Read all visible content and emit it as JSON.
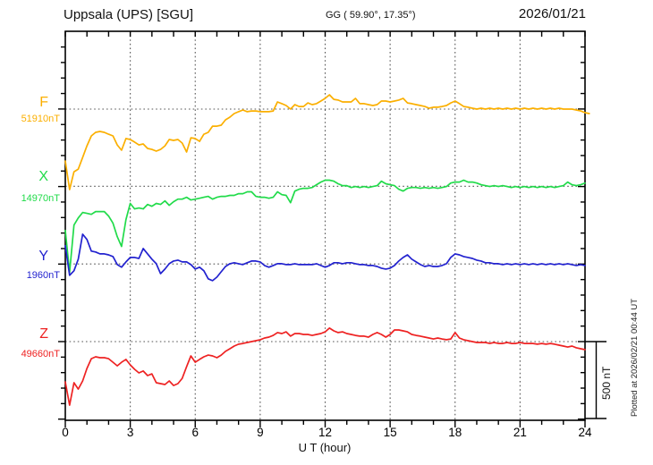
{
  "header": {
    "title": "Uppsala (UPS)  [SGU]",
    "coordinates": "GG ( 59.90°,  17.35°)",
    "date": "2026/01/21"
  },
  "axis": {
    "xlabel": "U T (hour)"
  },
  "scale_bar": {
    "label": "500 nT"
  },
  "footnote": {
    "plotted": "Plotted at 2026/02/21 00:44 UT"
  },
  "side_labels": [
    {
      "letter": "F",
      "value": "51910nT",
      "color": "#fbaf00"
    },
    {
      "letter": "X",
      "value": "14970nT",
      "color": "#21db4a"
    },
    {
      "letter": "Y",
      "value": "1960nT",
      "color": "#2222cf"
    },
    {
      "letter": "Z",
      "value": "49660nT",
      "color": "#ee2222"
    }
  ],
  "chart_data": {
    "type": "line",
    "title": "Uppsala (UPS) [SGU] magnetogram 2026/01/21",
    "xlabel": "U T (hour)",
    "x_range": [
      0,
      24
    ],
    "x_ticks": [
      0,
      3,
      6,
      9,
      12,
      15,
      18,
      21,
      24
    ],
    "y_units": "nT",
    "baseline_separation_nT": 500,
    "scale_bar_nT": 500,
    "grid": "dotted vertical every 3 h, dotted horizontal at each series baseline",
    "legend_position": "left margin, colored letters with baseline values",
    "series": [
      {
        "name": "F",
        "baseline_nT": 51910,
        "color": "#fbaf00",
        "x_start": 0,
        "x_step": 0.2,
        "offsets_nT": [
          -335,
          -519,
          -404,
          -387,
          -312,
          -237,
          -173,
          -150,
          -144,
          -150,
          -162,
          -173,
          -231,
          -265,
          -190,
          -196,
          -213,
          -231,
          -225,
          -254,
          -260,
          -271,
          -260,
          -237,
          -196,
          -202,
          -196,
          -219,
          -277,
          -185,
          -190,
          -208,
          -162,
          -150,
          -110,
          -110,
          -104,
          -69,
          -52,
          -29,
          -17,
          -6,
          -17,
          -12,
          -12,
          -17,
          -17,
          -17,
          -12,
          46,
          35,
          23,
          0,
          29,
          17,
          17,
          40,
          29,
          35,
          52,
          69,
          92,
          63,
          58,
          46,
          46,
          46,
          69,
          35,
          35,
          29,
          23,
          29,
          52,
          52,
          46,
          52,
          58,
          69,
          40,
          35,
          29,
          23,
          17,
          6,
          12,
          12,
          17,
          23,
          40,
          52,
          35,
          17,
          12,
          6,
          0,
          6,
          0,
          6,
          0,
          6,
          0,
          6,
          0,
          6,
          0,
          6,
          0,
          6,
          0,
          6,
          0,
          6,
          0,
          6,
          0,
          0,
          0,
          -6,
          -12,
          -23,
          -29
        ]
      },
      {
        "name": "X",
        "baseline_nT": 14970,
        "color": "#21db4a",
        "x_start": 0,
        "x_step": 0.2,
        "offsets_nT": [
          -285,
          -556,
          -250,
          -204,
          -169,
          -175,
          -181,
          -163,
          -163,
          -163,
          -192,
          -238,
          -325,
          -388,
          -215,
          -111,
          -146,
          -140,
          -146,
          -117,
          -129,
          -111,
          -117,
          -94,
          -123,
          -100,
          -83,
          -83,
          -71,
          -88,
          -83,
          -77,
          -71,
          -65,
          -83,
          -71,
          -65,
          -65,
          -59,
          -59,
          -48,
          -48,
          -36,
          -36,
          -65,
          -71,
          -71,
          -77,
          -71,
          -36,
          -54,
          -59,
          -106,
          -31,
          -19,
          -13,
          -13,
          -8,
          10,
          27,
          39,
          39,
          33,
          16,
          4,
          4,
          -8,
          -2,
          -8,
          -2,
          -8,
          -2,
          4,
          33,
          16,
          10,
          4,
          -19,
          -31,
          -13,
          -8,
          -8,
          -13,
          -8,
          -13,
          -8,
          -13,
          -8,
          -2,
          21,
          27,
          27,
          39,
          27,
          27,
          21,
          10,
          4,
          -2,
          4,
          -2,
          4,
          -2,
          -8,
          -2,
          -8,
          -2,
          -8,
          -2,
          -8,
          -2,
          -8,
          -2,
          -8,
          -2,
          4,
          27,
          10,
          4,
          10,
          21
        ]
      },
      {
        "name": "Y",
        "baseline_nT": 1960,
        "color": "#2222cf",
        "x_start": 0,
        "x_step": 0.2,
        "offsets_nT": [
          117,
          -73,
          -44,
          31,
          192,
          158,
          83,
          77,
          65,
          65,
          59,
          48,
          -4,
          -21,
          13,
          42,
          42,
          36,
          100,
          65,
          31,
          2,
          -62,
          -33,
          2,
          19,
          25,
          13,
          13,
          -4,
          -33,
          -21,
          -44,
          -96,
          -108,
          -85,
          -50,
          -16,
          2,
          8,
          2,
          -4,
          8,
          19,
          19,
          13,
          -10,
          -21,
          -10,
          2,
          2,
          -4,
          -4,
          2,
          -4,
          -4,
          -4,
          -4,
          2,
          -10,
          -21,
          -10,
          8,
          8,
          2,
          8,
          8,
          2,
          -4,
          -4,
          -10,
          -10,
          -16,
          -27,
          -33,
          -27,
          -10,
          19,
          42,
          59,
          31,
          13,
          -4,
          -16,
          -10,
          -16,
          -16,
          -10,
          2,
          42,
          65,
          59,
          48,
          42,
          36,
          25,
          19,
          8,
          8,
          2,
          2,
          -4,
          2,
          -4,
          2,
          -4,
          2,
          -4,
          2,
          -4,
          2,
          -4,
          2,
          -4,
          2,
          -4,
          2,
          -4,
          -10,
          -4,
          -10
        ]
      },
      {
        "name": "Z",
        "baseline_nT": 49660,
        "color": "#ee2222",
        "x_start": 0,
        "x_step": 0.2,
        "offsets_nT": [
          -260,
          -410,
          -265,
          -306,
          -254,
          -173,
          -110,
          -98,
          -104,
          -104,
          -110,
          -133,
          -156,
          -133,
          -115,
          -150,
          -179,
          -202,
          -190,
          -219,
          -208,
          -265,
          -271,
          -277,
          -254,
          -283,
          -271,
          -237,
          -162,
          -92,
          -133,
          -115,
          -98,
          -87,
          -92,
          -104,
          -87,
          -63,
          -46,
          -29,
          -17,
          -12,
          -6,
          0,
          6,
          12,
          23,
          29,
          40,
          58,
          52,
          63,
          35,
          52,
          52,
          46,
          46,
          40,
          46,
          52,
          63,
          87,
          69,
          58,
          63,
          52,
          46,
          40,
          35,
          35,
          29,
          46,
          58,
          46,
          29,
          46,
          75,
          75,
          69,
          63,
          46,
          40,
          35,
          29,
          23,
          17,
          23,
          17,
          12,
          17,
          58,
          23,
          12,
          6,
          0,
          -6,
          -6,
          -6,
          -12,
          -6,
          -12,
          -12,
          -6,
          -12,
          -12,
          -6,
          -12,
          -12,
          -12,
          -17,
          -12,
          -17,
          -12,
          -17,
          -23,
          -29,
          -35,
          -29,
          -40,
          -46,
          -52
        ]
      }
    ]
  }
}
